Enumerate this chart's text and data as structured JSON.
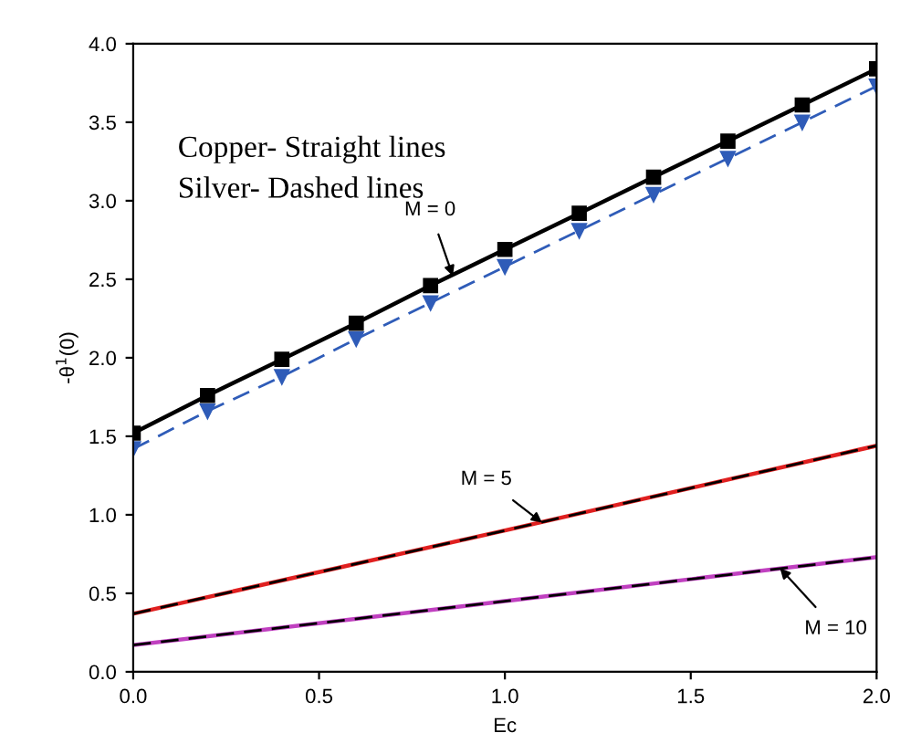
{
  "chart_data": {
    "type": "line",
    "xlabel": "Ec",
    "ylabel": "-θ$^{1}$(0)",
    "x": [
      0,
      0.2,
      0.4,
      0.6,
      0.8,
      1.0,
      1.2,
      1.4,
      1.6,
      1.8,
      2.0
    ],
    "series": [
      {
        "color": "#000000",
        "marker": "square",
        "line_style": "solid",
        "values": [
          1.52,
          1.76,
          1.99,
          2.22,
          2.46,
          2.69,
          2.92,
          3.15,
          3.38,
          3.61,
          3.84
        ]
      },
      {
        "color": "#2f5cb8",
        "marker": "triangle",
        "line_style": "dashed",
        "values": [
          1.42,
          1.66,
          1.88,
          2.12,
          2.35,
          2.58,
          2.81,
          3.04,
          3.27,
          3.5,
          3.73
        ]
      },
      {
        "color": "#e02020",
        "line_style": "solid",
        "x": [
          0,
          1.0,
          2.0
        ],
        "values": [
          0.37,
          0.9,
          1.44
        ]
      },
      {
        "color": "#000000",
        "line_style": "dashed",
        "x": [
          0,
          1.0,
          2.0
        ],
        "values": [
          0.37,
          0.9,
          1.44
        ]
      },
      {
        "color": "#c040c0",
        "line_style": "solid",
        "x": [
          0,
          1.0,
          2.0
        ],
        "values": [
          0.17,
          0.45,
          0.73
        ]
      },
      {
        "color": "#000000",
        "line_style": "dashed",
        "x": [
          0,
          1.0,
          2.0
        ],
        "values": [
          0.17,
          0.45,
          0.73
        ]
      }
    ],
    "xlim": [
      0,
      2.0
    ],
    "xticks": [
      {
        "value": 0,
        "label": "0.0"
      },
      0.5,
      {
        "value": 1.0,
        "label": "1.0"
      },
      1.5,
      {
        "value": 2.0,
        "label": "2.0"
      }
    ],
    "ylim": [
      0,
      4.0
    ],
    "yticks": [
      {
        "value": 0,
        "label": "0.0"
      },
      0.5,
      {
        "value": 1.0,
        "label": "1.0"
      },
      1.5,
      {
        "value": 2.0,
        "label": "2.0"
      },
      2.5,
      {
        "value": 3.0,
        "label": "3.0"
      },
      3.5,
      {
        "value": 4.0,
        "label": "4.0"
      }
    ],
    "annotations": [
      "Copper- Straight lines",
      "Silver- Dashed lines",
      {
        "text": "M = 0",
        "x": 0.86,
        "y": 2.52
      },
      {
        "text": "M = 5",
        "x": 1.1,
        "y": 0.95
      },
      {
        "text": "M = 10",
        "x": 1.74,
        "y": 0.66
      }
    ]
  }
}
